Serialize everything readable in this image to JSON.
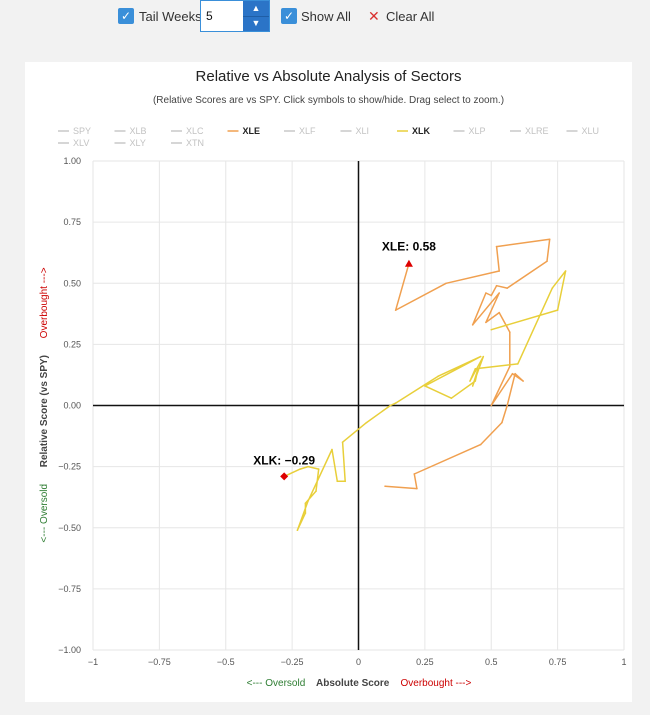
{
  "toolbar": {
    "tail_weeks_label": "Tail Weeks",
    "tail_weeks_value": "5",
    "show_all_label": "Show All",
    "clear_all_label": "Clear All",
    "checkbox_mark": "✓",
    "up_glyph": "▲",
    "down_glyph": "▼",
    "clear_glyph": "✕"
  },
  "chart_data": {
    "type": "line",
    "title": "Relative vs Absolute Analysis of Sectors",
    "subtitle": "(Relative Scores are vs SPY. Click symbols to show/hide. Drag select to zoom.)",
    "xlabel": "Absolute Score",
    "ylabel": "Relative Score (vs SPY)",
    "x_oversold_label": "<--- Oversold",
    "x_overbought_label": "Overbought --->",
    "y_oversold_label": "<--- Oversold",
    "y_overbought_label": "Overbought --->",
    "xlim": [
      -1,
      1
    ],
    "ylim": [
      -1,
      1
    ],
    "x_ticks": [
      -1,
      -0.75,
      -0.5,
      -0.25,
      0,
      0.25,
      0.5,
      0.75,
      1
    ],
    "x_tick_labels": [
      "−1",
      "−0.75",
      "−0.5",
      "−0.25",
      "0",
      "0.25",
      "0.5",
      "0.75",
      "1"
    ],
    "y_ticks": [
      1,
      0.75,
      0.5,
      0.25,
      0,
      -0.25,
      -0.5,
      -0.75,
      -1
    ],
    "y_tick_labels": [
      "1.00",
      "0.75",
      "0.50",
      "0.25",
      "0.00",
      "−0.25",
      "−0.50",
      "−0.75",
      "−1.00"
    ],
    "grid": true,
    "legend_row1": [
      "SPY",
      "XLB",
      "XLC",
      "XLE",
      "XLF",
      "XLI",
      "XLK",
      "XLP",
      "XLRE",
      "XLU"
    ],
    "legend_row2": [
      "XLV",
      "XLY",
      "XTN"
    ],
    "active_symbols": [
      "XLE",
      "XLK"
    ],
    "colors": {
      "XLE": "#f0a050",
      "XLK": "#e8cf3a",
      "inactive": "#c8c8c8",
      "overbought": "#cc0000",
      "oversold": "#2e7d32"
    },
    "series": [
      {
        "name": "XLE",
        "color": "#f0a050",
        "marker_color": "#dd0000",
        "marker": "triangle",
        "label": "XLE: 0.58",
        "points": [
          [
            0.1,
            -0.33
          ],
          [
            0.22,
            -0.34
          ],
          [
            0.21,
            -0.28
          ],
          [
            0.46,
            -0.16
          ],
          [
            0.54,
            -0.07
          ],
          [
            0.56,
            0.0
          ],
          [
            0.59,
            0.13
          ],
          [
            0.62,
            0.1
          ],
          [
            0.58,
            0.13
          ],
          [
            0.5,
            0.0
          ],
          [
            0.57,
            0.16
          ],
          [
            0.57,
            0.3
          ],
          [
            0.53,
            0.38
          ],
          [
            0.48,
            0.34
          ],
          [
            0.53,
            0.46
          ],
          [
            0.43,
            0.33
          ],
          [
            0.48,
            0.46
          ],
          [
            0.5,
            0.45
          ],
          [
            0.52,
            0.49
          ],
          [
            0.56,
            0.48
          ],
          [
            0.71,
            0.59
          ],
          [
            0.72,
            0.68
          ],
          [
            0.52,
            0.65
          ],
          [
            0.53,
            0.55
          ],
          [
            0.33,
            0.5
          ],
          [
            0.14,
            0.39
          ],
          [
            0.19,
            0.58
          ]
        ]
      },
      {
        "name": "XLK",
        "color": "#e8cf3a",
        "marker_color": "#dd0000",
        "marker": "diamond",
        "label": "XLK: −0.29",
        "points": [
          [
            0.5,
            0.31
          ],
          [
            0.75,
            0.39
          ],
          [
            0.78,
            0.55
          ],
          [
            0.73,
            0.48
          ],
          [
            0.6,
            0.17
          ],
          [
            0.44,
            0.15
          ],
          [
            0.42,
            0.1
          ],
          [
            0.44,
            0.14
          ],
          [
            0.47,
            0.2
          ],
          [
            0.43,
            0.08
          ],
          [
            0.45,
            0.15
          ],
          [
            0.44,
            0.1
          ],
          [
            0.35,
            0.03
          ],
          [
            0.25,
            0.08
          ],
          [
            0.46,
            0.2
          ],
          [
            0.3,
            0.12
          ],
          [
            0.14,
            0.01
          ],
          [
            0.12,
            0.0
          ],
          [
            0.03,
            -0.07
          ],
          [
            -0.06,
            -0.15
          ],
          [
            -0.05,
            -0.31
          ],
          [
            -0.08,
            -0.31
          ],
          [
            -0.1,
            -0.18
          ],
          [
            -0.19,
            -0.39
          ],
          [
            -0.23,
            -0.51
          ],
          [
            -0.2,
            -0.44
          ],
          [
            -0.2,
            -0.4
          ],
          [
            -0.16,
            -0.35
          ],
          [
            -0.15,
            -0.26
          ],
          [
            -0.19,
            -0.25
          ],
          [
            -0.22,
            -0.26
          ],
          [
            -0.28,
            -0.29
          ]
        ]
      }
    ]
  }
}
